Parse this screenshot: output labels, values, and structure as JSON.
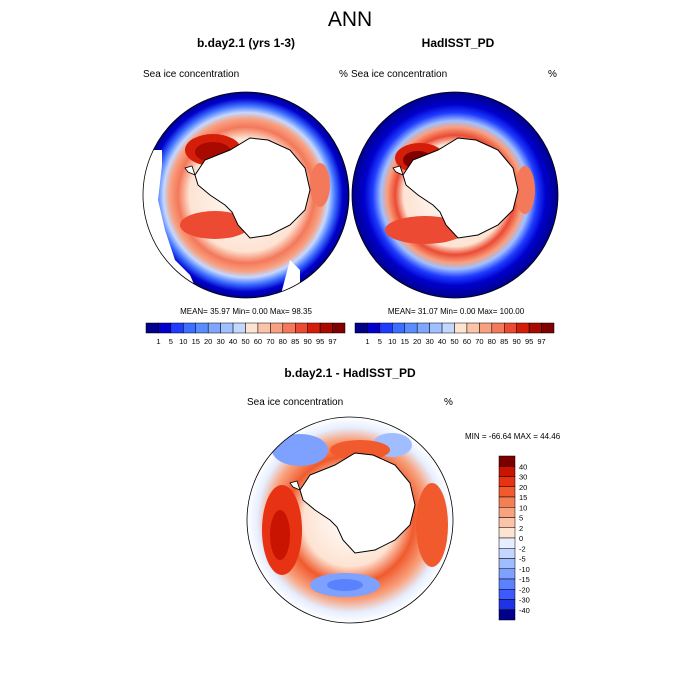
{
  "figure": {
    "title": "ANN",
    "panels": [
      {
        "title": "b.day2.1 (yrs 1-3)",
        "left_label": "Sea ice concentration",
        "right_label": "%",
        "stats": "MEAN=  35.97  Min=   0.00  Max=  98.35"
      },
      {
        "title": "HadISST_PD",
        "left_label": "Sea ice concentration",
        "right_label": "%",
        "stats": "MEAN=  31.07  Min=   0.00  Max= 100.00"
      },
      {
        "title": "b.day2.1 - HadISST_PD",
        "left_label": "Sea ice concentration",
        "right_label": "%",
        "stats": "MIN = -66.64 MAX =  44.46"
      }
    ],
    "colorbar_top": {
      "labels": [
        "1",
        "5",
        "10",
        "15",
        "20",
        "30",
        "40",
        "50",
        "60",
        "70",
        "80",
        "85",
        "90",
        "95",
        "97"
      ],
      "colors": [
        "#00008b",
        "#0000cd",
        "#1e3cff",
        "#3c6eff",
        "#5a8cff",
        "#7ea6ff",
        "#a0c0ff",
        "#c4d8ff",
        "#fde3d2",
        "#fbc3a8",
        "#f8a080",
        "#f4785a",
        "#ec4a32",
        "#d41e0a",
        "#a80a00",
        "#800000"
      ]
    },
    "colorbar_diff": {
      "labels": [
        "40",
        "30",
        "20",
        "15",
        "10",
        "5",
        "2",
        "0",
        "-2",
        "-5",
        "-10",
        "-15",
        "-20",
        "-30",
        "-40"
      ],
      "colors": [
        "#7a0000",
        "#c81400",
        "#e83214",
        "#f05a2d",
        "#f57f55",
        "#f8a27e",
        "#fbc3a8",
        "#fde3d2",
        "#e6eeff",
        "#c4d6ff",
        "#a0beff",
        "#7ea0ff",
        "#5a82ff",
        "#3c5aff",
        "#1e32e6",
        "#00008b"
      ]
    }
  }
}
